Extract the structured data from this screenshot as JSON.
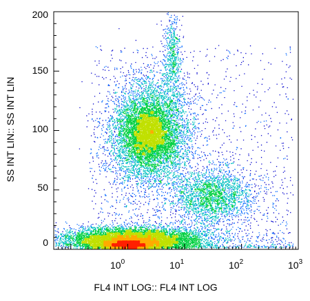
{
  "chart_data": {
    "type": "scatter",
    "subtype": "flow-cytometry-density-dotplot",
    "title": "",
    "xlabel": "FL4 INT LOG:: FL4 INT LOG",
    "ylabel": "SS INT LIN:: SS INT LIN",
    "x_scale": "log",
    "xlim": [
      0.05,
      1000
    ],
    "y_scale": "linear",
    "ylim": [
      0,
      200
    ],
    "x_ticks": [
      {
        "value": 1,
        "base": "10",
        "exp": "0"
      },
      {
        "value": 10,
        "base": "10",
        "exp": "1"
      },
      {
        "value": 100,
        "base": "10",
        "exp": "2"
      },
      {
        "value": 1000,
        "base": "10",
        "exp": "3"
      }
    ],
    "y_ticks": [
      {
        "value": 0,
        "label": "0"
      },
      {
        "value": 50,
        "label": "50"
      },
      {
        "value": 100,
        "label": "100"
      },
      {
        "value": 150,
        "label": "150"
      },
      {
        "value": 200,
        "label": "200"
      }
    ],
    "grid": false,
    "legend": "none",
    "color_scale": [
      "#0000cc",
      "#0066ff",
      "#00c0c0",
      "#00d040",
      "#c0e000",
      "#ffaa00",
      "#ff2000"
    ],
    "populations": [
      {
        "label": "low-SS population",
        "center_x": 1.2,
        "center_y": 8,
        "spread_x_decades": 0.6,
        "spread_y": 5,
        "peak_density": "high"
      },
      {
        "label": "main SS population",
        "center_x": 2.5,
        "center_y": 98,
        "spread_x_decades": 0.35,
        "spread_y": 22,
        "peak_density": "medium"
      },
      {
        "label": "mid-FL4 population",
        "center_x": 30,
        "center_y": 45,
        "spread_x_decades": 0.35,
        "spread_y": 12,
        "peak_density": "low"
      }
    ]
  }
}
